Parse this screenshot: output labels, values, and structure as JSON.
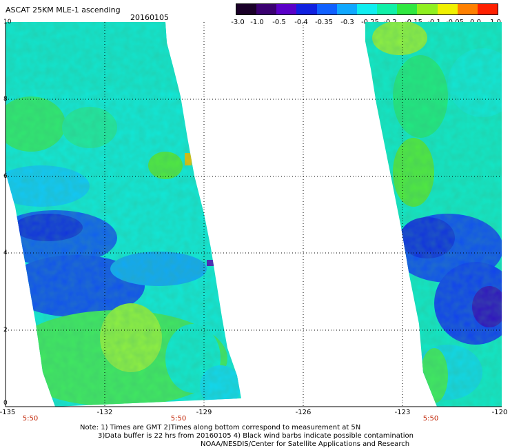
{
  "header": {
    "title": "ASCAT 25KM MLE-1 ascending",
    "date": "20160105"
  },
  "colorbar": {
    "labels": [
      "-3.0",
      "-1.0",
      "-0.5",
      "-0.4",
      "-0.35",
      "-0.3",
      "-0.25",
      "-0.2",
      "-0.15",
      "-0.1",
      "-0.05",
      "0.0",
      "1.0"
    ],
    "colors": [
      "#1a0028",
      "#3a0070",
      "#5a00c8",
      "#1020e0",
      "#1060ff",
      "#10a8ff",
      "#10eef0",
      "#10f0a8",
      "#30e840",
      "#90f020",
      "#f0f000",
      "#ff8000",
      "#ff2000"
    ]
  },
  "axes": {
    "y_labels": [
      "10",
      "8",
      "6",
      "4",
      "2",
      "0"
    ],
    "x_labels": [
      "-135",
      "-132",
      "-129",
      "-126",
      "-123",
      "-120"
    ],
    "time_labels": [
      "5:50",
      "5:50",
      "5:50"
    ]
  },
  "notes": {
    "line1": "Note: 1) Times are GMT 2)Times along bottom correspond to measurement at 5N",
    "line2": "3)Data buffer is 22 hrs from 20160105 4) Black wind barbs indicate possible contamination",
    "line3": "NOAA/NESDIS/Center for Satellite Applications and Research"
  }
}
